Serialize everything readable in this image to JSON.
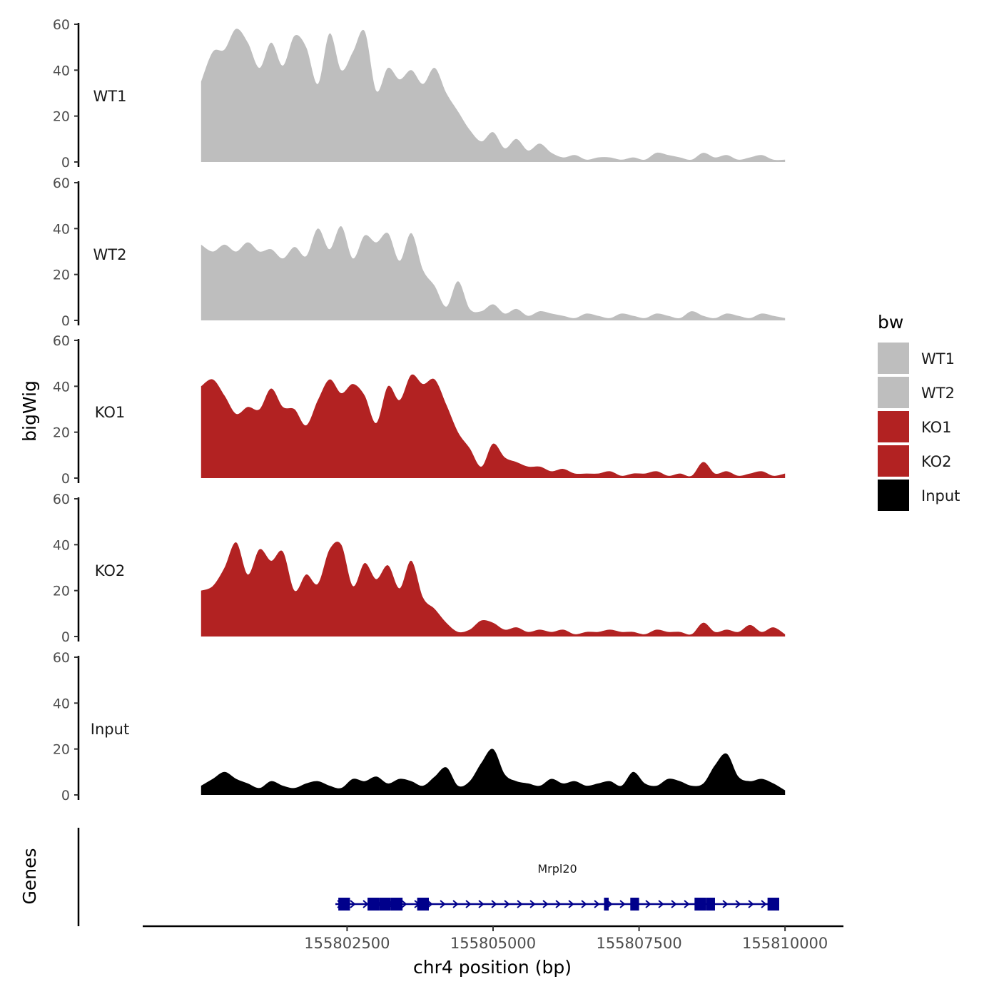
{
  "chart_data": {
    "type": "area",
    "title": "",
    "ylabel": "bigWig",
    "xlabel": "chr4 position (bp)",
    "gene_track_label": "Genes",
    "xlim": [
      155799000,
      155811000
    ],
    "ylim": [
      0,
      60
    ],
    "y_ticks": [
      0,
      20,
      40,
      60
    ],
    "x_ticks": [
      155802500,
      155805000,
      155807500,
      155810000
    ],
    "x_tick_labels": [
      "155802500",
      "155805000",
      "155807500",
      "155810000"
    ],
    "legend": {
      "title": "bw",
      "position": "right",
      "items": [
        {
          "label": "WT1",
          "color": "#bebebe"
        },
        {
          "label": "WT2",
          "color": "#bebebe"
        },
        {
          "label": "KO1",
          "color": "#b22222"
        },
        {
          "label": "KO2",
          "color": "#b22222"
        },
        {
          "label": "Input",
          "color": "#000000"
        }
      ]
    },
    "x": [
      155800000,
      155800200,
      155800400,
      155800600,
      155800800,
      155801000,
      155801200,
      155801400,
      155801600,
      155801800,
      155802000,
      155802200,
      155802400,
      155802600,
      155802800,
      155803000,
      155803200,
      155803400,
      155803600,
      155803800,
      155804000,
      155804200,
      155804400,
      155804600,
      155804800,
      155805000,
      155805200,
      155805400,
      155805600,
      155805800,
      155806000,
      155806200,
      155806400,
      155806600,
      155806800,
      155807000,
      155807200,
      155807400,
      155807600,
      155807800,
      155808000,
      155808200,
      155808400,
      155808600,
      155808800,
      155809000,
      155809200,
      155809400,
      155809600,
      155809800,
      155810000
    ],
    "series": [
      {
        "name": "WT1",
        "color": "#bebebe",
        "values": [
          35,
          48,
          49,
          58,
          52,
          41,
          52,
          42,
          55,
          50,
          34,
          56,
          40,
          48,
          57,
          31,
          41,
          36,
          40,
          34,
          41,
          30,
          22,
          14,
          9,
          13,
          6,
          10,
          5,
          8,
          4,
          2,
          3,
          1,
          2,
          2,
          1,
          2,
          1,
          4,
          3,
          2,
          1,
          4,
          2,
          3,
          1,
          2,
          3,
          1,
          1
        ]
      },
      {
        "name": "WT2",
        "color": "#bebebe",
        "values": [
          33,
          30,
          33,
          30,
          34,
          30,
          31,
          27,
          32,
          28,
          40,
          31,
          41,
          27,
          37,
          34,
          38,
          26,
          38,
          22,
          15,
          6,
          17,
          5,
          4,
          7,
          3,
          5,
          2,
          4,
          3,
          2,
          1,
          3,
          2,
          1,
          3,
          2,
          1,
          3,
          2,
          1,
          4,
          2,
          1,
          3,
          2,
          1,
          3,
          2,
          1
        ]
      },
      {
        "name": "KO1",
        "color": "#b22222",
        "values": [
          40,
          43,
          36,
          28,
          31,
          30,
          39,
          31,
          30,
          23,
          34,
          43,
          37,
          41,
          36,
          24,
          40,
          34,
          45,
          41,
          43,
          32,
          20,
          13,
          5,
          15,
          9,
          7,
          5,
          5,
          3,
          4,
          2,
          2,
          2,
          3,
          1,
          2,
          2,
          3,
          1,
          2,
          1,
          7,
          2,
          3,
          1,
          2,
          3,
          1,
          2
        ]
      },
      {
        "name": "KO2",
        "color": "#b22222",
        "values": [
          20,
          22,
          30,
          41,
          27,
          38,
          33,
          37,
          20,
          27,
          23,
          38,
          40,
          22,
          32,
          25,
          31,
          21,
          33,
          17,
          12,
          6,
          2,
          3,
          7,
          6,
          3,
          4,
          2,
          3,
          2,
          3,
          1,
          2,
          2,
          3,
          2,
          2,
          1,
          3,
          2,
          2,
          1,
          6,
          2,
          3,
          2,
          5,
          2,
          4,
          1
        ]
      },
      {
        "name": "Input",
        "color": "#000000",
        "values": [
          4,
          7,
          10,
          7,
          5,
          3,
          6,
          4,
          3,
          5,
          6,
          4,
          3,
          7,
          6,
          8,
          5,
          7,
          6,
          4,
          8,
          12,
          4,
          6,
          14,
          20,
          9,
          6,
          5,
          4,
          7,
          5,
          6,
          4,
          5,
          6,
          4,
          10,
          5,
          4,
          7,
          6,
          4,
          5,
          13,
          18,
          8,
          6,
          7,
          5,
          2
        ]
      }
    ],
    "gene": {
      "name": "Mrpl20",
      "strand": "+",
      "start": 155802300,
      "end": 155809900,
      "exons": [
        [
          155802350,
          155802550
        ],
        [
          155802850,
          155803050
        ],
        [
          155803050,
          155803250
        ],
        [
          155803250,
          155803450
        ],
        [
          155803700,
          155803900
        ],
        [
          155806900,
          155806980
        ],
        [
          155807350,
          155807500
        ],
        [
          155808450,
          155808650
        ],
        [
          155808650,
          155808800
        ],
        [
          155809700,
          155809900
        ]
      ]
    }
  }
}
